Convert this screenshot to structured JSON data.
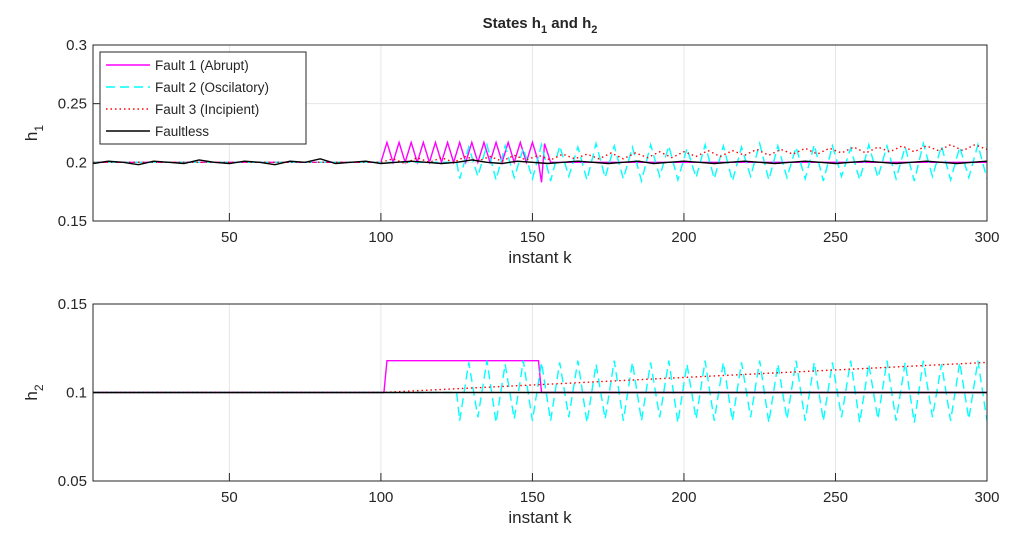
{
  "chart_data": [
    {
      "type": "line",
      "title": [
        "States h",
        "1",
        " and h",
        "2"
      ],
      "xlabel": "instant k",
      "ylabel": [
        "h",
        "1"
      ],
      "xlim": [
        5,
        300
      ],
      "xticks": [
        50,
        100,
        150,
        200,
        250,
        300
      ],
      "ylim": [
        0.15,
        0.3
      ],
      "yticks": [
        0.15,
        0.2,
        0.25,
        0.3
      ],
      "grid": true,
      "legend": "northwest",
      "series": [
        {
          "name": "Fault 1 (Abrupt)",
          "color": "#ff00ff",
          "linestyle": "solid",
          "x": [
            5,
            25,
            50,
            75,
            100,
            102,
            104,
            106,
            108,
            110,
            112,
            114,
            116,
            118,
            120,
            122,
            124,
            126,
            128,
            130,
            132,
            134,
            136,
            138,
            140,
            142,
            144,
            146,
            148,
            150,
            152,
            153,
            154,
            156,
            200,
            250,
            300
          ],
          "values": [
            0.2,
            0.2,
            0.2,
            0.2,
            0.2,
            0.217,
            0.2,
            0.217,
            0.2,
            0.217,
            0.2,
            0.217,
            0.2,
            0.217,
            0.2,
            0.217,
            0.2,
            0.217,
            0.2,
            0.217,
            0.2,
            0.217,
            0.2,
            0.217,
            0.2,
            0.217,
            0.2,
            0.217,
            0.2,
            0.217,
            0.2,
            0.183,
            0.216,
            0.2,
            0.2,
            0.2,
            0.2
          ]
        },
        {
          "name": "Fault 2 (Oscilatory)",
          "color": "#00ffff",
          "linestyle": "dashed",
          "x": [
            5,
            125,
            126,
            129,
            132,
            135,
            138,
            141,
            144,
            147,
            150,
            153,
            156,
            159,
            162,
            165,
            168,
            171,
            174,
            177,
            180,
            183,
            186,
            189,
            192,
            195,
            198,
            201,
            204,
            207,
            210,
            213,
            216,
            219,
            222,
            225,
            228,
            231,
            234,
            237,
            240,
            243,
            246,
            249,
            252,
            255,
            258,
            261,
            264,
            267,
            270,
            273,
            276,
            279,
            282,
            285,
            288,
            291,
            294,
            297,
            300
          ],
          "values": [
            0.2,
            0.2,
            0.186,
            0.213,
            0.188,
            0.215,
            0.185,
            0.214,
            0.187,
            0.212,
            0.186,
            0.215,
            0.184,
            0.214,
            0.188,
            0.213,
            0.185,
            0.216,
            0.187,
            0.214,
            0.186,
            0.213,
            0.184,
            0.215,
            0.188,
            0.214,
            0.185,
            0.212,
            0.187,
            0.215,
            0.186,
            0.214,
            0.184,
            0.213,
            0.188,
            0.216,
            0.185,
            0.214,
            0.187,
            0.213,
            0.186,
            0.215,
            0.184,
            0.214,
            0.188,
            0.212,
            0.185,
            0.215,
            0.187,
            0.214,
            0.186,
            0.213,
            0.184,
            0.216,
            0.188,
            0.214,
            0.185,
            0.213,
            0.187,
            0.215,
            0.186
          ]
        },
        {
          "name": "Fault 3 (Incipient)",
          "color": "#ff0000",
          "linestyle": "dotted",
          "x": [
            5,
            100,
            104,
            108,
            112,
            116,
            120,
            124,
            128,
            132,
            136,
            140,
            144,
            148,
            152,
            156,
            160,
            164,
            168,
            172,
            176,
            180,
            184,
            188,
            192,
            196,
            200,
            204,
            208,
            212,
            216,
            220,
            224,
            228,
            232,
            236,
            240,
            244,
            248,
            252,
            256,
            260,
            264,
            268,
            272,
            276,
            280,
            284,
            288,
            292,
            296,
            300
          ],
          "values": [
            0.2,
            0.2,
            0.203,
            0.199,
            0.204,
            0.2,
            0.204,
            0.2,
            0.205,
            0.201,
            0.205,
            0.201,
            0.206,
            0.202,
            0.206,
            0.202,
            0.207,
            0.203,
            0.207,
            0.203,
            0.208,
            0.203,
            0.208,
            0.204,
            0.209,
            0.204,
            0.209,
            0.205,
            0.21,
            0.205,
            0.21,
            0.206,
            0.211,
            0.206,
            0.211,
            0.207,
            0.212,
            0.207,
            0.212,
            0.208,
            0.213,
            0.208,
            0.213,
            0.209,
            0.214,
            0.209,
            0.214,
            0.21,
            0.215,
            0.21,
            0.215,
            0.211
          ]
        },
        {
          "name": "Faultless",
          "color": "#000000",
          "linestyle": "solid",
          "x": [
            5,
            10,
            15,
            20,
            25,
            30,
            35,
            40,
            45,
            50,
            55,
            60,
            65,
            70,
            75,
            80,
            85,
            90,
            95,
            100,
            105,
            110,
            115,
            120,
            125,
            130,
            135,
            140,
            145,
            150,
            155,
            160,
            165,
            170,
            175,
            180,
            185,
            190,
            195,
            200,
            205,
            210,
            215,
            220,
            225,
            230,
            235,
            240,
            245,
            250,
            255,
            260,
            265,
            270,
            275,
            280,
            285,
            290,
            295,
            300
          ],
          "values": [
            0.199,
            0.201,
            0.2,
            0.198,
            0.201,
            0.2,
            0.199,
            0.202,
            0.2,
            0.199,
            0.201,
            0.2,
            0.198,
            0.201,
            0.2,
            0.203,
            0.199,
            0.2,
            0.201,
            0.199,
            0.2,
            0.201,
            0.2,
            0.199,
            0.2,
            0.202,
            0.2,
            0.199,
            0.201,
            0.2,
            0.199,
            0.2,
            0.201,
            0.2,
            0.199,
            0.2,
            0.201,
            0.199,
            0.2,
            0.201,
            0.2,
            0.199,
            0.2,
            0.201,
            0.2,
            0.199,
            0.2,
            0.201,
            0.2,
            0.199,
            0.2,
            0.201,
            0.2,
            0.199,
            0.2,
            0.201,
            0.2,
            0.199,
            0.2,
            0.201
          ]
        }
      ]
    },
    {
      "type": "line",
      "xlabel": "instant k",
      "ylabel": [
        "h",
        "2"
      ],
      "xlim": [
        5,
        300
      ],
      "xticks": [
        50,
        100,
        150,
        200,
        250,
        300
      ],
      "ylim": [
        0.05,
        0.15
      ],
      "yticks": [
        0.05,
        0.1,
        0.15
      ],
      "grid": true,
      "series": [
        {
          "name": "Fault 1 (Abrupt)",
          "color": "#ff00ff",
          "linestyle": "solid",
          "x": [
            5,
            101,
            102,
            152,
            153,
            300
          ],
          "values": [
            0.1,
            0.1,
            0.118,
            0.118,
            0.1,
            0.1
          ]
        },
        {
          "name": "Fault 2 (Oscilatory)",
          "color": "#00ffff",
          "linestyle": "dashed",
          "x": [
            5,
            125,
            126,
            129,
            132,
            135,
            138,
            141,
            144,
            147,
            150,
            153,
            156,
            159,
            162,
            165,
            168,
            171,
            174,
            177,
            180,
            183,
            186,
            189,
            192,
            195,
            198,
            201,
            204,
            207,
            210,
            213,
            216,
            219,
            222,
            225,
            228,
            231,
            234,
            237,
            240,
            243,
            246,
            249,
            252,
            255,
            258,
            261,
            264,
            267,
            270,
            273,
            276,
            279,
            282,
            285,
            288,
            291,
            294,
            297,
            300
          ],
          "values": [
            0.1,
            0.1,
            0.084,
            0.117,
            0.086,
            0.118,
            0.083,
            0.116,
            0.085,
            0.118,
            0.084,
            0.117,
            0.084,
            0.117,
            0.086,
            0.118,
            0.083,
            0.116,
            0.085,
            0.118,
            0.084,
            0.117,
            0.084,
            0.117,
            0.086,
            0.118,
            0.083,
            0.116,
            0.085,
            0.118,
            0.084,
            0.117,
            0.084,
            0.117,
            0.086,
            0.118,
            0.083,
            0.116,
            0.085,
            0.118,
            0.084,
            0.117,
            0.084,
            0.117,
            0.086,
            0.118,
            0.083,
            0.116,
            0.085,
            0.118,
            0.084,
            0.117,
            0.083,
            0.118,
            0.086,
            0.116,
            0.084,
            0.117,
            0.085,
            0.118,
            0.084
          ]
        },
        {
          "name": "Fault 3 (Incipient)",
          "color": "#ff0000",
          "linestyle": "dotted",
          "x": [
            5,
            100,
            300
          ],
          "values": [
            0.1,
            0.1,
            0.117
          ]
        },
        {
          "name": "Faultless",
          "color": "#000000",
          "linestyle": "solid",
          "x": [
            5,
            300
          ],
          "values": [
            0.1,
            0.1
          ]
        }
      ]
    }
  ]
}
